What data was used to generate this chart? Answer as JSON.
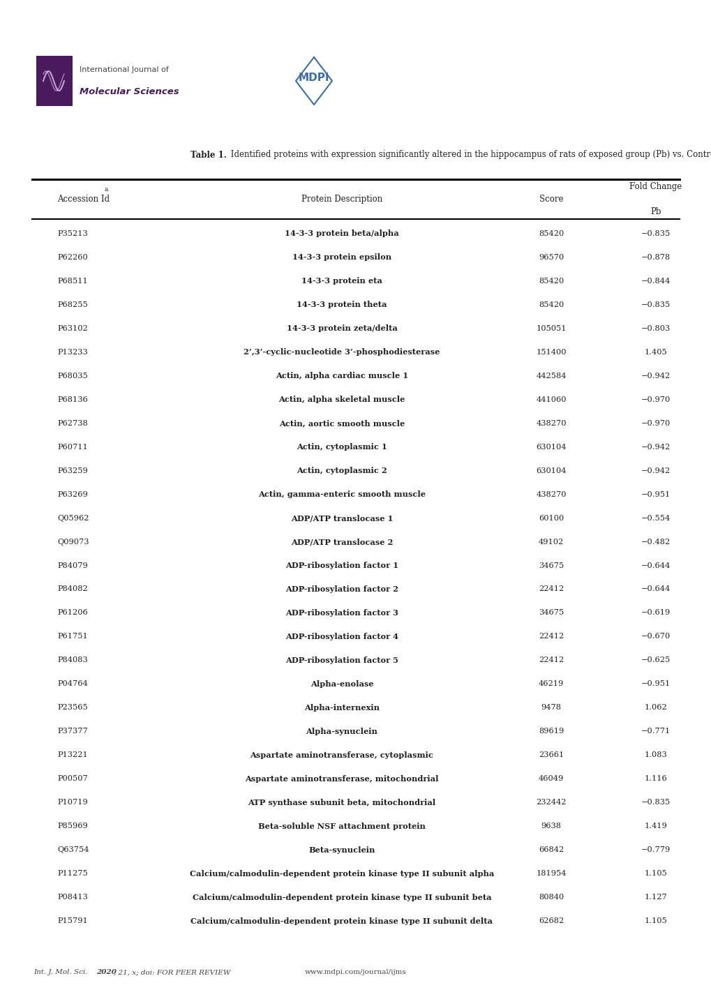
{
  "title_bold": "Table 1.",
  "title_rest": " Identified proteins with expression significantly altered in the hippocampus of rats of exposed group (Pb) υs. Control.",
  "rows": [
    [
      "P35213",
      "14-3-3 protein beta/alpha",
      "85420",
      "−0.835"
    ],
    [
      "P62260",
      "14-3-3 protein epsilon",
      "96570",
      "−0.878"
    ],
    [
      "P68511",
      "14-3-3 protein eta",
      "85420",
      "−0.844"
    ],
    [
      "P68255",
      "14-3-3 protein theta",
      "85420",
      "−0.835"
    ],
    [
      "P63102",
      "14-3-3 protein zeta/delta",
      "105051",
      "−0.803"
    ],
    [
      "P13233",
      "2’,3’-cyclic-nucleotide 3’-phosphodiesterase",
      "151400",
      "1.405"
    ],
    [
      "P68035",
      "Actin, alpha cardiac muscle 1",
      "442584",
      "−0.942"
    ],
    [
      "P68136",
      "Actin, alpha skeletal muscle",
      "441060",
      "−0.970"
    ],
    [
      "P62738",
      "Actin, aortic smooth muscle",
      "438270",
      "−0.970"
    ],
    [
      "P60711",
      "Actin, cytoplasmic 1",
      "630104",
      "−0.942"
    ],
    [
      "P63259",
      "Actin, cytoplasmic 2",
      "630104",
      "−0.942"
    ],
    [
      "P63269",
      "Actin, gamma-enteric smooth muscle",
      "438270",
      "−0.951"
    ],
    [
      "Q05962",
      "ADP/ATP translocase 1",
      "60100",
      "−0.554"
    ],
    [
      "Q09073",
      "ADP/ATP translocase 2",
      "49102",
      "−0.482"
    ],
    [
      "P84079",
      "ADP-ribosylation factor 1",
      "34675",
      "−0.644"
    ],
    [
      "P84082",
      "ADP-ribosylation factor 2",
      "22412",
      "−0.644"
    ],
    [
      "P61206",
      "ADP-ribosylation factor 3",
      "34675",
      "−0.619"
    ],
    [
      "P61751",
      "ADP-ribosylation factor 4",
      "22412",
      "−0.670"
    ],
    [
      "P84083",
      "ADP-ribosylation factor 5",
      "22412",
      "−0.625"
    ],
    [
      "P04764",
      "Alpha-enolase",
      "46219",
      "−0.951"
    ],
    [
      "P23565",
      "Alpha-internexin",
      "9478",
      "1.062"
    ],
    [
      "P37377",
      "Alpha-synuclein",
      "89619",
      "−0.771"
    ],
    [
      "P13221",
      "Aspartate aminotransferase, cytoplasmic",
      "23661",
      "1.083"
    ],
    [
      "P00507",
      "Aspartate aminotransferase, mitochondrial",
      "46049",
      "1.116"
    ],
    [
      "P10719",
      "ATP synthase subunit beta, mitochondrial",
      "232442",
      "−0.835"
    ],
    [
      "P85969",
      "Beta-soluble NSF attachment protein",
      "9638",
      "1.419"
    ],
    [
      "Q63754",
      "Beta-synuclein",
      "66842",
      "−0.779"
    ],
    [
      "P11275",
      "Calcium/calmodulin-dependent protein kinase type II subunit alpha",
      "181954",
      "1.105"
    ],
    [
      "P08413",
      "Calcium/calmodulin-dependent protein kinase type II subunit beta",
      "80840",
      "1.127"
    ],
    [
      "P15791",
      "Calcium/calmodulin-dependent protein kinase type II subunit delta",
      "62682",
      "1.105"
    ]
  ],
  "footer_left_normal": "Int. J. Mol. Sci. ",
  "footer_left_bold": "2020",
  "footer_left_end": ", 21, x; doi: FOR PEER REVIEW",
  "footer_right": "www.mdpi.com/journal/ijms",
  "bg_color": "#ffffff",
  "logo_text1": "International Journal of",
  "logo_text2": "Molecular Sciences",
  "logo_bg": "#4a1a5e",
  "mdpi_color": "#3a6ea8"
}
